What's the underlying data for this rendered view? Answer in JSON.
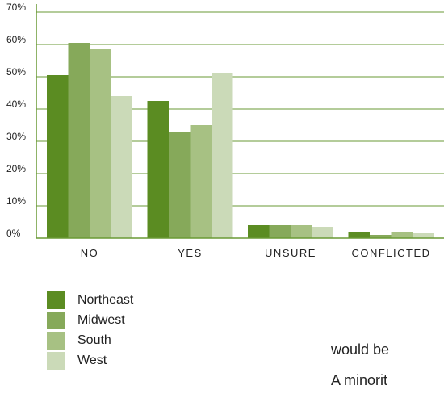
{
  "chart_data": {
    "type": "bar",
    "categories": [
      "NO",
      "YES",
      "UNSURE",
      "CONFLICTED"
    ],
    "series": [
      {
        "name": "Northeast",
        "color": "#5b8c22",
        "values": [
          50.5,
          42.5,
          4,
          2
        ]
      },
      {
        "name": "Midwest",
        "color": "#86a95a",
        "values": [
          60.5,
          33,
          4,
          1
        ]
      },
      {
        "name": "South",
        "color": "#a7c183",
        "values": [
          58.5,
          35,
          4,
          2
        ]
      },
      {
        "name": "West",
        "color": "#cbdab8",
        "values": [
          44,
          51,
          3.5,
          1.5
        ]
      }
    ],
    "ylim": [
      0,
      70
    ],
    "yticks": [
      "0%",
      "10%",
      "20%",
      "30%",
      "40%",
      "50%",
      "60%",
      "70%"
    ],
    "grid": true,
    "grid_color": "#6a9a35",
    "legend_placement": "bottom-left"
  },
  "text_fragments": [
    "would be",
    "A minorit"
  ]
}
